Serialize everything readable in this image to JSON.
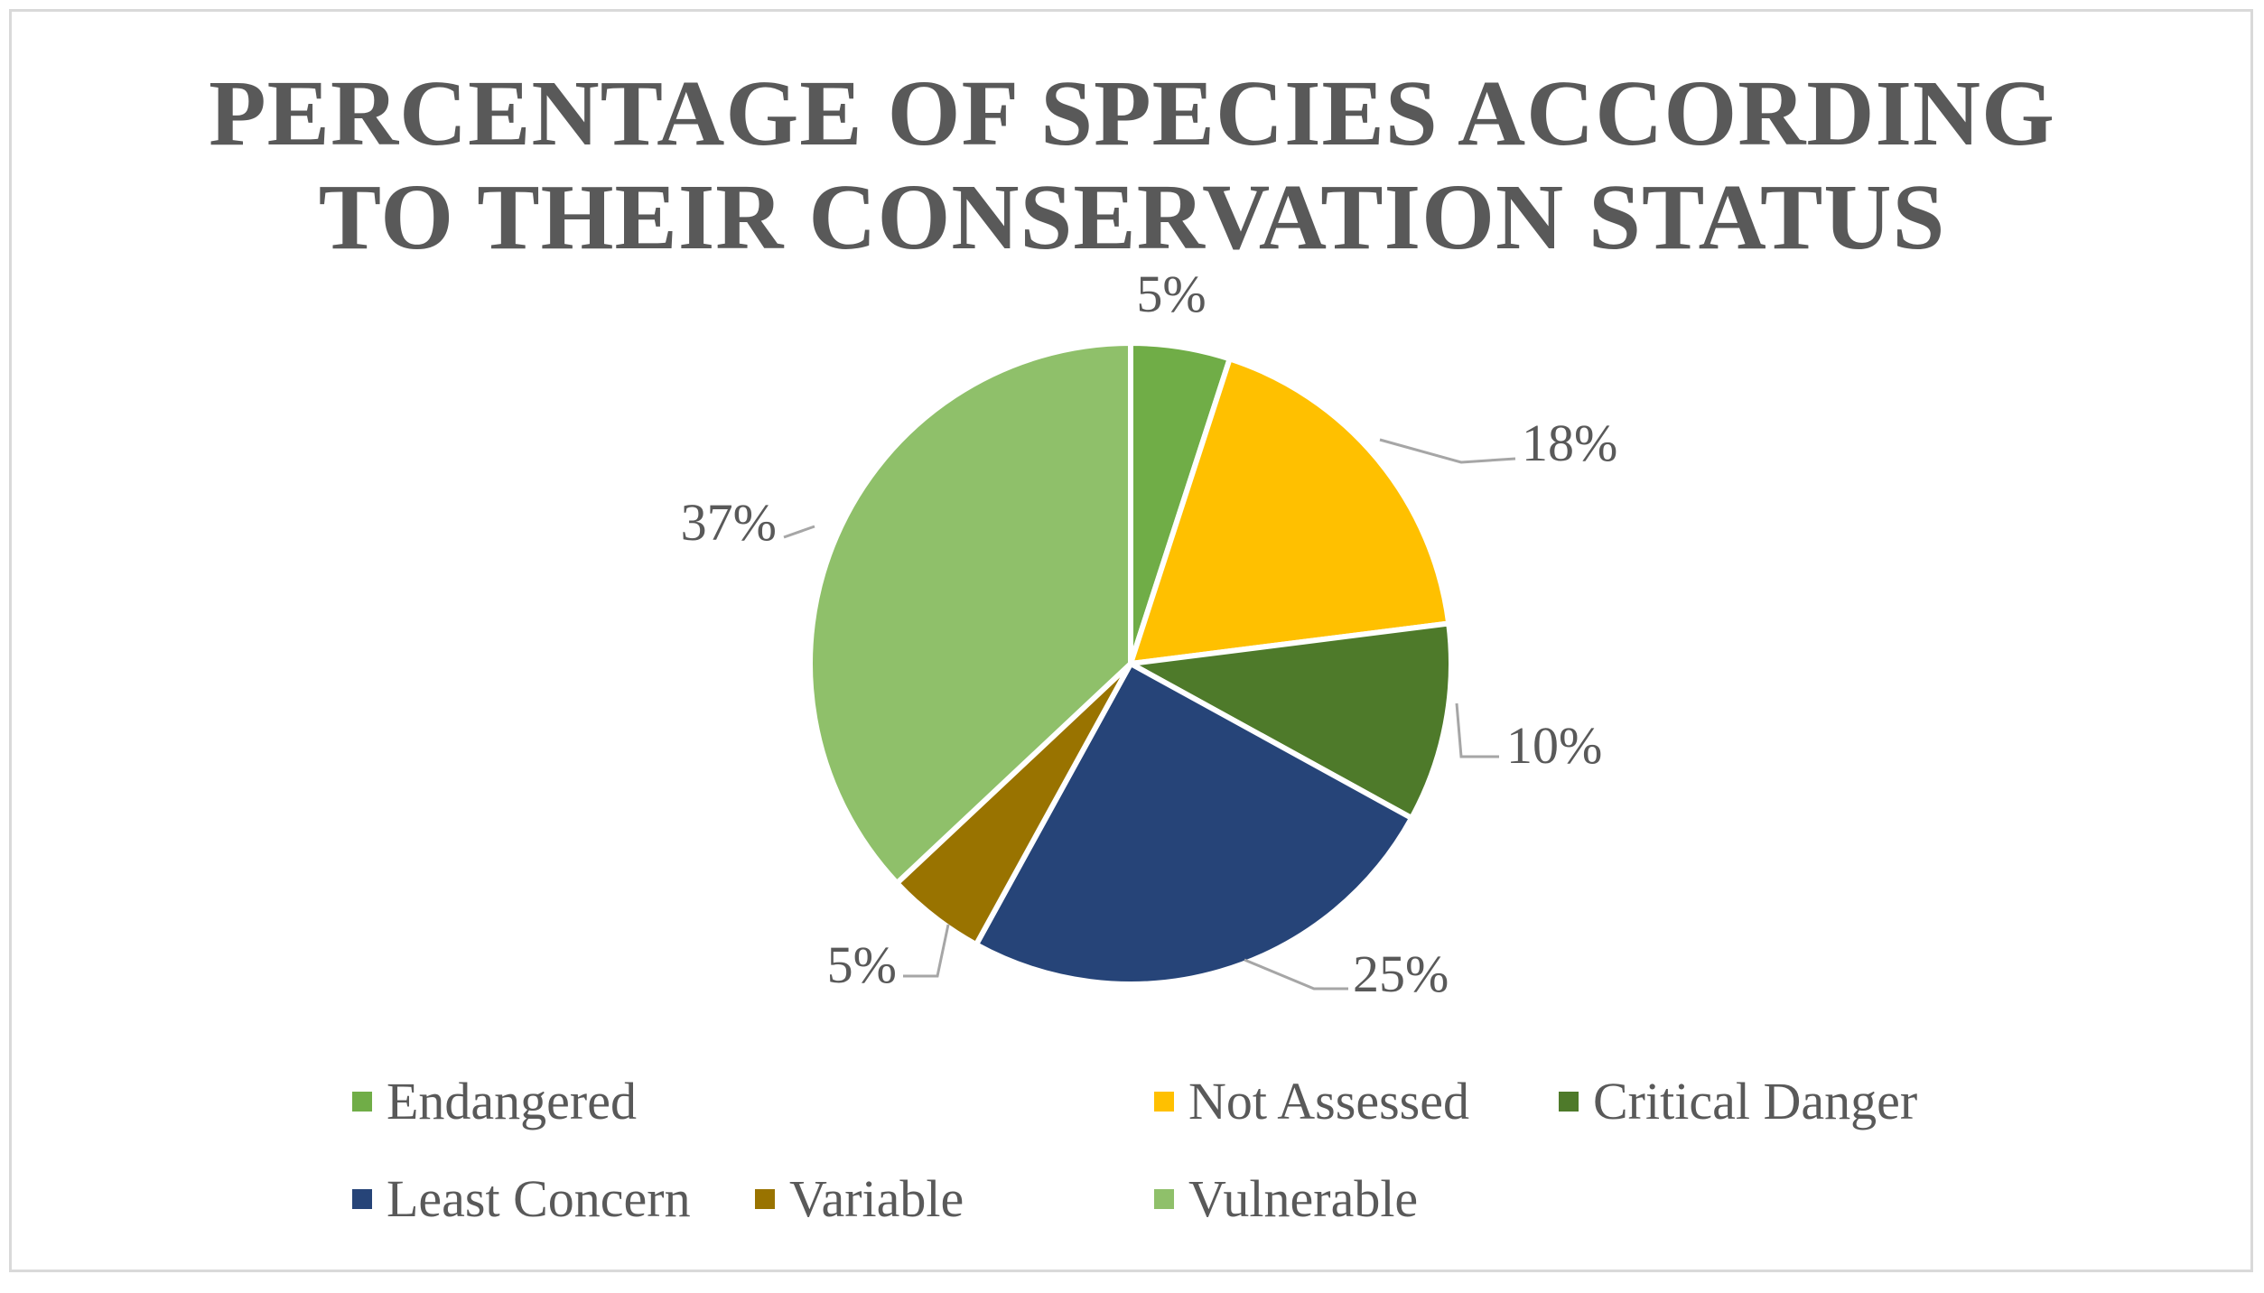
{
  "chart_data": {
    "type": "pie",
    "title_lines": [
      "PERCENTAGE  OF SPECIES ACCORDING",
      "TO THEIR  CONSERVATION  STATUS"
    ],
    "categories": [
      "Endangered",
      "Not Assessed",
      "Critical Danger",
      "Least Concern",
      "Variable",
      "Vulnerable"
    ],
    "values": [
      5,
      18,
      10,
      25,
      5,
      37
    ],
    "data_labels": [
      "5%",
      "18%",
      "10%",
      "25%",
      "5%",
      "37%"
    ],
    "colors": [
      "#70ad47",
      "#ffc000",
      "#4e7a2a",
      "#264478",
      "#997300",
      "#8fc06a"
    ],
    "legend_position": "bottom"
  }
}
